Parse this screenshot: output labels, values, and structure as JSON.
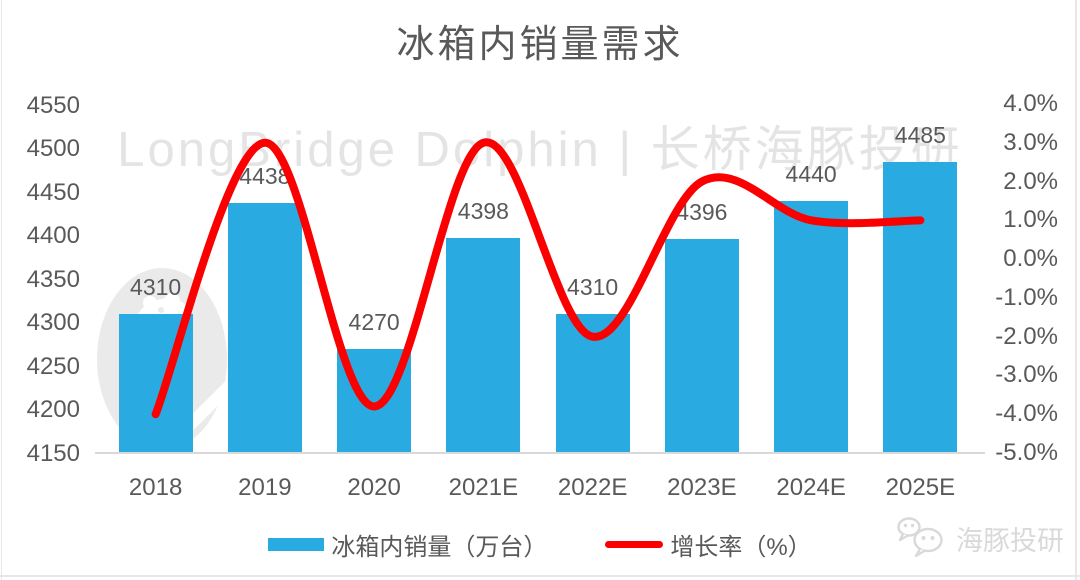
{
  "watermark": {
    "text": "LongBridge Dolphin | 长桥海豚投研"
  },
  "footer": {
    "brand": "海豚投研",
    "icon": "wechat-icon"
  },
  "colors": {
    "bar": "#29ABE2",
    "line": "#FA0000",
    "text": "#595959",
    "axis_line": "#D9D9D9",
    "watermark_text": "#E4E4E4",
    "watermark_logo": "#EAEAEA",
    "footer_brand": "#D9D9D9",
    "border": "#E7E7E7"
  },
  "chart_data": {
    "type": "combo-bar-line",
    "title": "冰箱内销量需求",
    "categories": [
      "2018",
      "2019",
      "2020",
      "2021E",
      "2022E",
      "2023E",
      "2024E",
      "2025E"
    ],
    "series": [
      {
        "name": "冰箱内销量（万台）",
        "chart_type": "bar",
        "axis": "left",
        "color": "#29ABE2",
        "values": [
          4310,
          4438,
          4270,
          4398,
          4310,
          4396,
          4440,
          4485
        ],
        "data_labels": [
          "4310",
          "4438",
          "4270",
          "4398",
          "4310",
          "4396",
          "4440",
          "4485"
        ]
      },
      {
        "name": "增长率（%）",
        "chart_type": "line",
        "axis": "right",
        "color": "#FA0000",
        "smooth": true,
        "values": [
          -4.0,
          3.0,
          -3.8,
          3.0,
          -2.0,
          2.0,
          1.0,
          1.0
        ]
      }
    ],
    "left_axis": {
      "min": 4150,
      "max": 4550,
      "step": 50,
      "tick_labels": [
        "4550",
        "4500",
        "4450",
        "4400",
        "4350",
        "4300",
        "4250",
        "4200",
        "4150"
      ]
    },
    "right_axis": {
      "min": -5.0,
      "max": 4.0,
      "step": 1.0,
      "tick_labels": [
        "4.0%",
        "3.0%",
        "2.0%",
        "1.0%",
        "0.0%",
        "-1.0%",
        "-2.0%",
        "-3.0%",
        "-4.0%",
        "-5.0%"
      ]
    },
    "grid": false,
    "legend_position": "bottom"
  }
}
